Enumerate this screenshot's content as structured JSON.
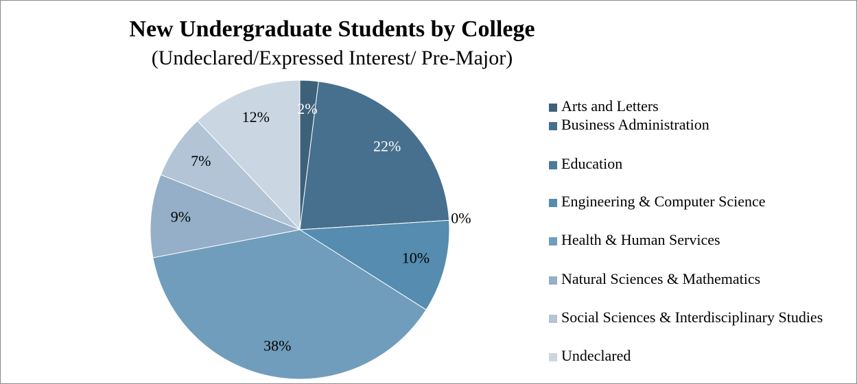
{
  "chart_data": {
    "type": "pie",
    "title": "New Undergraduate Students by College",
    "subtitle": "(Undeclared/Expressed Interest/ Pre-Major)",
    "categories": [
      "Arts and Letters",
      "Business Administration",
      "Education",
      "Engineering & Computer Science",
      "Health & Human Services",
      "Natural Sciences & Mathematics",
      "Social Sciences & Interdisciplinary Studies",
      "Undeclared"
    ],
    "values": [
      2,
      22,
      0,
      10,
      38,
      9,
      7,
      12
    ],
    "value_labels": [
      "2%",
      "22%",
      "0%",
      "10%",
      "38%",
      "9%",
      "7%",
      "12%"
    ],
    "colors": [
      "#3d6179",
      "#47708f",
      "#4c7b9b",
      "#558caf",
      "#719dbc",
      "#94afc7",
      "#b2c4d5",
      "#cad7e3"
    ],
    "legend": "right"
  }
}
